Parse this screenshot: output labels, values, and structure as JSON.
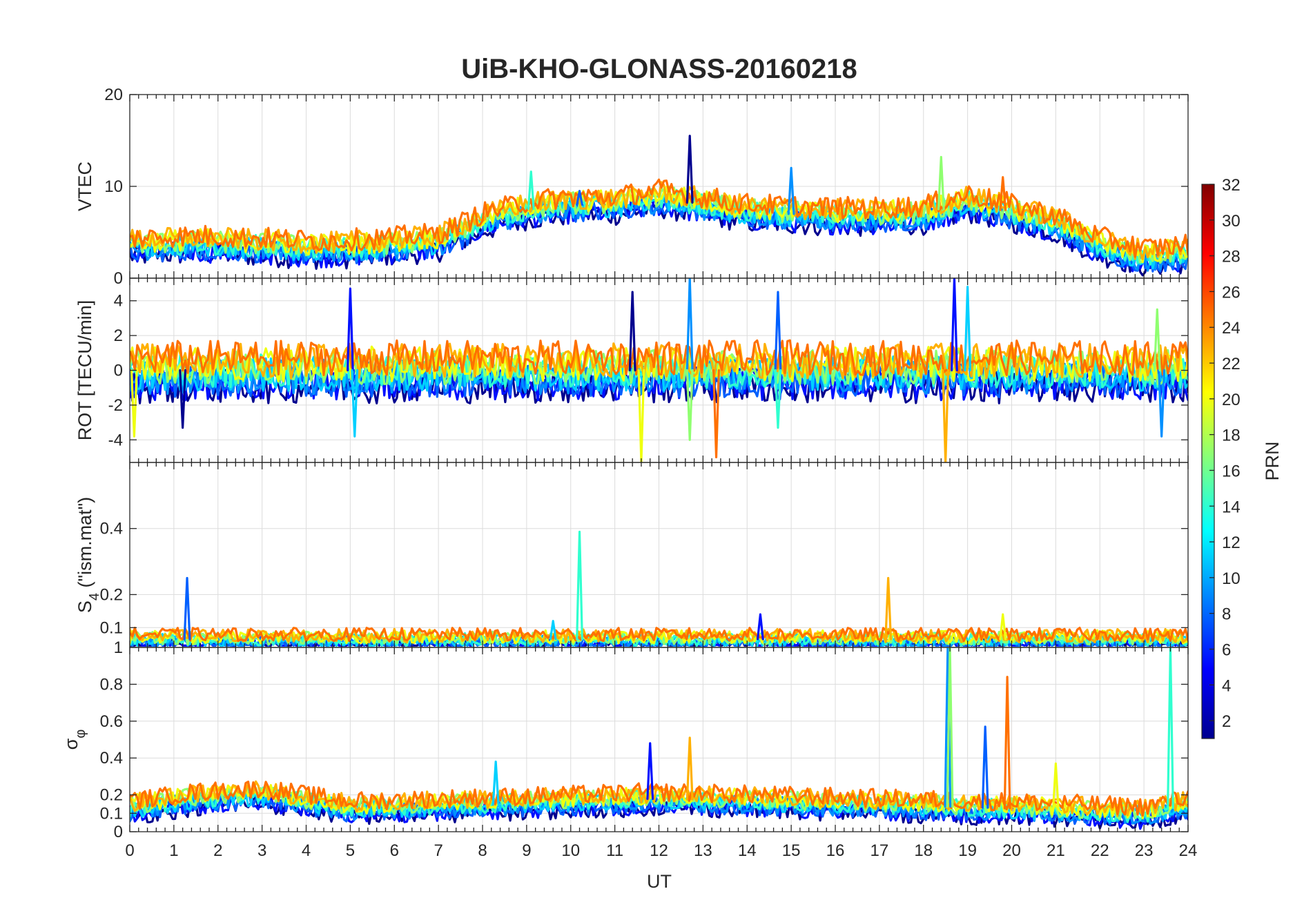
{
  "chart_data": {
    "type": "line",
    "title": "UiB-KHO-GLONASS-20160218",
    "xlabel": "UT",
    "xlim": [
      0,
      24
    ],
    "xticks": [
      "0",
      "1",
      "2",
      "3",
      "4",
      "5",
      "6",
      "7",
      "8",
      "9",
      "10",
      "11",
      "12",
      "13",
      "14",
      "15",
      "16",
      "17",
      "18",
      "19",
      "20",
      "21",
      "22",
      "23",
      "24"
    ],
    "panels": [
      {
        "name": "vtec",
        "ylabel": "VTEC",
        "ylim": [
          0,
          20
        ],
        "yticks": [
          "0",
          "10",
          "20"
        ],
        "ytick_values": [
          0,
          10,
          20
        ],
        "baseline": [
          [
            0,
            3.5
          ],
          [
            1.5,
            3.8
          ],
          [
            3,
            3.5
          ],
          [
            4.5,
            3.2
          ],
          [
            6,
            3.6
          ],
          [
            7,
            4.0
          ],
          [
            8,
            6.2
          ],
          [
            9,
            7.5
          ],
          [
            10,
            8.0
          ],
          [
            11,
            8.0
          ],
          [
            12,
            8.8
          ],
          [
            13,
            8.0
          ],
          [
            14,
            7.2
          ],
          [
            15,
            7.0
          ],
          [
            16,
            6.8
          ],
          [
            17,
            6.8
          ],
          [
            18,
            7.0
          ],
          [
            19,
            8.3
          ],
          [
            20,
            7.2
          ],
          [
            21,
            6.0
          ],
          [
            22,
            3.6
          ],
          [
            23,
            2.4
          ],
          [
            24,
            2.8
          ]
        ],
        "spikes": [
          [
            12.7,
            15.5
          ],
          [
            15.0,
            12.0
          ],
          [
            18.4,
            13.2
          ],
          [
            19.8,
            11.0
          ],
          [
            10.2,
            9.5
          ],
          [
            9.1,
            11.6
          ]
        ],
        "amplitude": 1.2
      },
      {
        "name": "rot",
        "ylabel": "ROT [TECU/min]",
        "ylim": [
          -5.3,
          5.3
        ],
        "yticks": [
          "-4",
          "-2",
          "0",
          "2",
          "4"
        ],
        "ytick_values": [
          -4,
          -2,
          0,
          2,
          4
        ],
        "baseline": [
          [
            0,
            0
          ],
          [
            24,
            0
          ]
        ],
        "spikes": [
          [
            5.0,
            4.7
          ],
          [
            5.1,
            -3.8
          ],
          [
            11.6,
            -5.3
          ],
          [
            11.4,
            4.5
          ],
          [
            12.7,
            5.3
          ],
          [
            12.7,
            -4.0
          ],
          [
            13.3,
            -5.0
          ],
          [
            14.7,
            4.5
          ],
          [
            14.7,
            -3.3
          ],
          [
            18.5,
            -5.3
          ],
          [
            18.7,
            5.3
          ],
          [
            19.0,
            4.8
          ],
          [
            0.1,
            -3.8
          ],
          [
            1.2,
            -3.3
          ],
          [
            23.4,
            -3.8
          ],
          [
            23.3,
            3.5
          ]
        ],
        "amplitude": 1.0
      },
      {
        "name": "s4",
        "ylabel": "S_4 (\"ism.mat\")",
        "ylim": [
          0.04,
          0.6
        ],
        "yticks": [
          "0.1",
          "0.2",
          "0.4"
        ],
        "ytick_values": [
          0.1,
          0.2,
          0.4
        ],
        "baseline": [
          [
            0,
            0.065
          ],
          [
            24,
            0.065
          ]
        ],
        "spikes": [
          [
            1.3,
            0.25
          ],
          [
            10.2,
            0.39
          ],
          [
            17.2,
            0.25
          ],
          [
            14.3,
            0.14
          ],
          [
            9.6,
            0.12
          ],
          [
            19.8,
            0.14
          ]
        ],
        "amplitude": 0.02
      },
      {
        "name": "sigma_phi",
        "ylabel": "σ_φ",
        "ylim": [
          0,
          1
        ],
        "yticks": [
          "0",
          "0.1",
          "0.2",
          "0.4",
          "0.6",
          "0.8",
          "1"
        ],
        "ytick_values": [
          0,
          0.1,
          0.2,
          0.4,
          0.6,
          0.8,
          1
        ],
        "baseline": [
          [
            0,
            0.13
          ],
          [
            1.5,
            0.18
          ],
          [
            3,
            0.2
          ],
          [
            5,
            0.13
          ],
          [
            8,
            0.15
          ],
          [
            12,
            0.18
          ],
          [
            15,
            0.16
          ],
          [
            18,
            0.14
          ],
          [
            21,
            0.12
          ],
          [
            23,
            0.1
          ],
          [
            24,
            0.15
          ]
        ],
        "spikes": [
          [
            18.55,
            1.0
          ],
          [
            18.6,
            1.0
          ],
          [
            19.9,
            0.84
          ],
          [
            19.4,
            0.57
          ],
          [
            23.6,
            1.0
          ],
          [
            12.7,
            0.51
          ],
          [
            11.8,
            0.48
          ],
          [
            8.3,
            0.38
          ],
          [
            21.0,
            0.37
          ]
        ],
        "amplitude": 0.05
      }
    ],
    "colorbar": {
      "label": "PRN",
      "range": [
        1,
        32
      ],
      "ticks": [
        "2",
        "4",
        "6",
        "8",
        "10",
        "12",
        "14",
        "16",
        "18",
        "20",
        "22",
        "24",
        "26",
        "28",
        "30",
        "32"
      ],
      "tick_values": [
        2,
        4,
        6,
        8,
        10,
        12,
        14,
        16,
        18,
        20,
        22,
        24,
        26,
        28,
        30,
        32
      ]
    },
    "series": [
      {
        "prn": 2,
        "color": "#00008f"
      },
      {
        "prn": 5,
        "color": "#0010ff"
      },
      {
        "prn": 8,
        "color": "#0060ff"
      },
      {
        "prn": 10,
        "color": "#0090ff"
      },
      {
        "prn": 12,
        "color": "#00d0ff"
      },
      {
        "prn": 14,
        "color": "#30ffcf"
      },
      {
        "prn": 17,
        "color": "#8fff70"
      },
      {
        "prn": 20,
        "color": "#efff10"
      },
      {
        "prn": 22,
        "color": "#ffb000"
      },
      {
        "prn": 24,
        "color": "#ff7000"
      }
    ]
  }
}
